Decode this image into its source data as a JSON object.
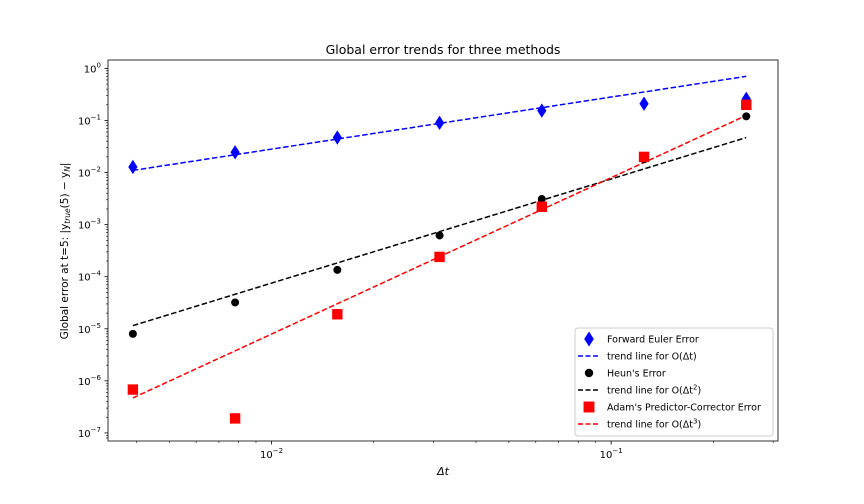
{
  "chart_data": {
    "type": "scatter",
    "title": "Global error trends for three methods",
    "xlabel": "Δt",
    "ylabel_prefix": "Global error at t=5: |y",
    "ylabel_sub1": "true",
    "ylabel_mid": "(5) − y",
    "ylabel_sub2": "N",
    "ylabel_suffix": "|",
    "xscale": "log",
    "yscale": "log",
    "xlim": [
      0.0033,
      0.31
    ],
    "ylim": [
      7e-08,
      1.45
    ],
    "x_ticks": [
      {
        "value": 0.01,
        "base": "10",
        "exp": "−2"
      },
      {
        "value": 0.1,
        "base": "10",
        "exp": "−1"
      }
    ],
    "y_ticks": [
      {
        "value": 1e-07,
        "base": "10",
        "exp": "−7"
      },
      {
        "value": 1e-06,
        "base": "10",
        "exp": "−6"
      },
      {
        "value": 1e-05,
        "base": "10",
        "exp": "−5"
      },
      {
        "value": 0.0001,
        "base": "10",
        "exp": "−4"
      },
      {
        "value": 0.001,
        "base": "10",
        "exp": "−3"
      },
      {
        "value": 0.01,
        "base": "10",
        "exp": "−2"
      },
      {
        "value": 0.1,
        "base": "10",
        "exp": "−1"
      },
      {
        "value": 1,
        "base": "10",
        "exp": "0"
      }
    ],
    "grid": false,
    "legend_position": "bottom-right",
    "x": [
      0.00390625,
      0.0078125,
      0.015625,
      0.03125,
      0.0625,
      0.125,
      0.25
    ],
    "series": [
      {
        "name": "Forward Euler Error",
        "marker": "diamond",
        "color": "#0000ff",
        "values": [
          0.0128,
          0.0245,
          0.047,
          0.09,
          0.155,
          0.21,
          0.26
        ]
      },
      {
        "name": "trend line for O(Δt)",
        "name_main": "trend line for O(Δt",
        "name_sup": "",
        "name_end": ")",
        "style": "dashed",
        "color": "#0000ff",
        "x": [
          0.00390625,
          0.25
        ],
        "values": [
          0.011,
          0.705
        ]
      },
      {
        "name": "Heun's Error",
        "marker": "circle",
        "color": "#000000",
        "values": [
          8e-06,
          3.2e-05,
          0.000135,
          0.00062,
          0.0031,
          0.018,
          0.12
        ]
      },
      {
        "name": "trend line for O(Δt²)",
        "name_main": "trend line for O(Δt",
        "name_sup": "2",
        "name_end": ")",
        "style": "dashed",
        "color": "#000000",
        "x": [
          0.00390625,
          0.25
        ],
        "values": [
          1.15e-05,
          0.047
        ]
      },
      {
        "name": "Adam's Predictor-Corrector Error",
        "marker": "square",
        "color": "#ff0000",
        "values": [
          6.8e-07,
          1.9e-07,
          1.9e-05,
          0.00024,
          0.0022,
          0.02,
          0.2
        ]
      },
      {
        "name": "trend line for O(Δt³)",
        "name_main": "trend line for O(Δt",
        "name_sup": "3",
        "name_end": ")",
        "style": "dashed",
        "color": "#ff0000",
        "x": [
          0.00390625,
          0.25
        ],
        "values": [
          4.7e-07,
          0.125
        ]
      }
    ]
  }
}
